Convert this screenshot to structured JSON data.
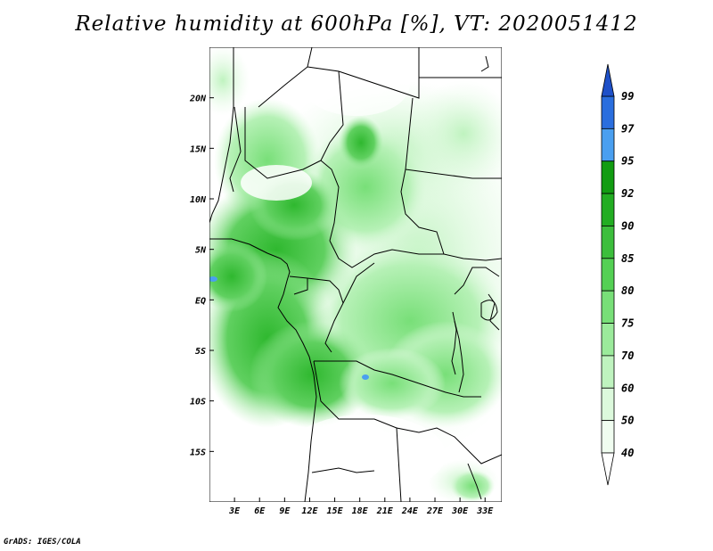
{
  "title": "Relative humidity at 600hPa [%], VT: 2020051412",
  "credit": "GrADS: IGES/COLA",
  "map": {
    "lon_range": [
      0,
      35
    ],
    "lat_range": [
      -20,
      25
    ],
    "lon_ticks": [
      "3E",
      "6E",
      "9E",
      "12E",
      "15E",
      "18E",
      "21E",
      "24E",
      "27E",
      "30E",
      "33E"
    ],
    "lat_ticks": [
      "20N",
      "15N",
      "10N",
      "5N",
      "EQ",
      "5S",
      "10S",
      "15S"
    ]
  },
  "colorbar": {
    "levels": [
      "99",
      "97",
      "95",
      "92",
      "90",
      "85",
      "80",
      "75",
      "70",
      "60",
      "50",
      "40"
    ],
    "colors": [
      "#1e50c8",
      "#2a6ede",
      "#4a9ff0",
      "#129c12",
      "#22ad22",
      "#3cbe3c",
      "#54d054",
      "#78df78",
      "#9bea9b",
      "#bff3bf",
      "#dcf9dc",
      "#f0fdf0"
    ]
  }
}
